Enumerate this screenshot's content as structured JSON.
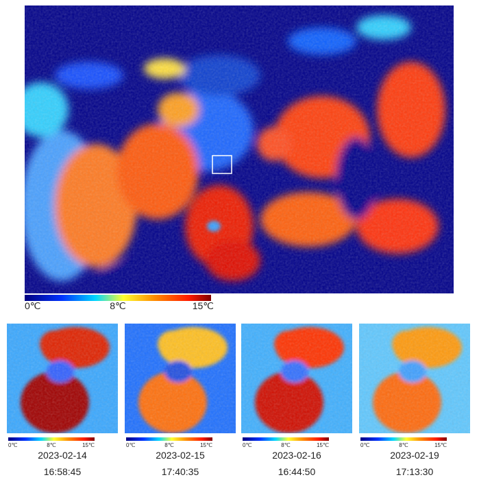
{
  "main": {
    "colorbar": [
      "0℃",
      "8℃",
      "15℃"
    ]
  },
  "panels": [
    {
      "date": "2023-02-14",
      "time": "16:58:45",
      "colorbar": [
        "0℃",
        "8℃",
        "15℃"
      ]
    },
    {
      "date": "2023-02-15",
      "time": "17:40:35",
      "colorbar": [
        "0℃",
        "8℃",
        "15℃"
      ]
    },
    {
      "date": "2023-02-16",
      "time": "16:44:50",
      "colorbar": [
        "0℃",
        "8℃",
        "15℃"
      ]
    },
    {
      "date": "2023-02-19",
      "time": "17:13:30",
      "colorbar": [
        "0℃",
        "8℃",
        "15℃"
      ]
    }
  ]
}
